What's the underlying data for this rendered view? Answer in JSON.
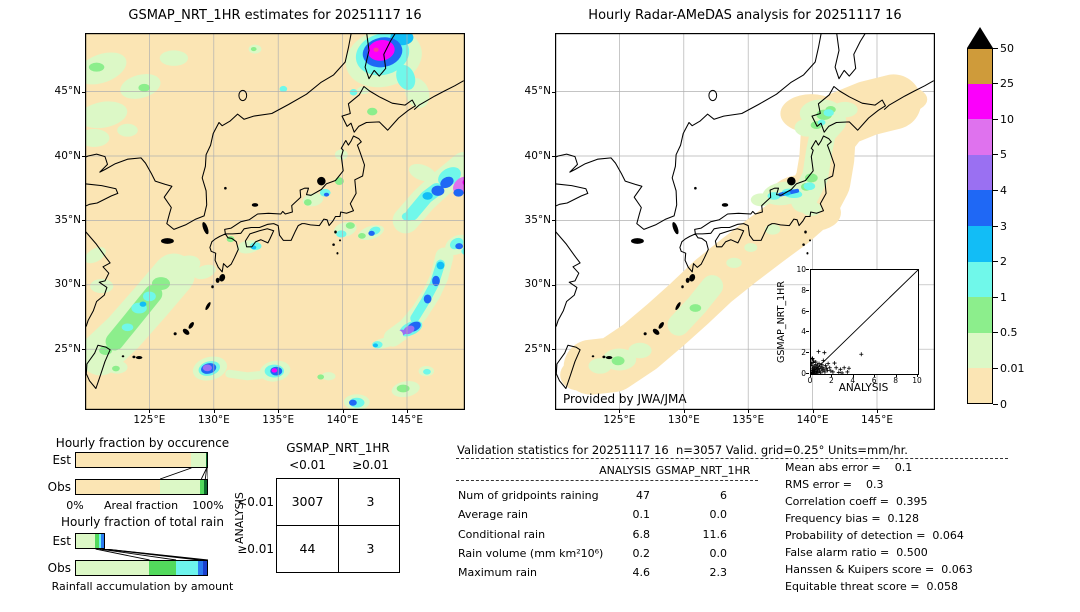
{
  "palette": {
    "wheat": "#fbe5b4",
    "palegreen": "#dcf8c6",
    "green": "#52d95c",
    "darkgreen": "#0c6b2c",
    "cyan": "#6df4ec",
    "blue": "#2b7bf0",
    "navy": "#1b41cf",
    "sea_right": "#ffffff",
    "coast": "#000000",
    "grid": "#b0b0b0"
  },
  "axes": {
    "lat": [
      {
        "v": 45,
        "label": "45°N"
      },
      {
        "v": 40,
        "label": "40°N"
      },
      {
        "v": 35,
        "label": "35°N"
      },
      {
        "v": 30,
        "label": "30°N"
      },
      {
        "v": 25,
        "label": "25°N"
      }
    ],
    "lon": [
      {
        "v": 125,
        "label": "125°E"
      },
      {
        "v": 130,
        "label": "130°E"
      },
      {
        "v": 135,
        "label": "135°E"
      },
      {
        "v": 140,
        "label": "140°E"
      },
      {
        "v": 145,
        "label": "145°E"
      }
    ]
  },
  "colorbar": {
    "tick_labels": [
      "50",
      "25",
      "10",
      "5",
      "4",
      "3",
      "2",
      "1",
      "0.5",
      "0.01",
      "0"
    ],
    "segment_colors_top_to_bottom": [
      "#cf9b3a",
      "#fb00fb",
      "#df72ee",
      "#9a70f2",
      "#1f68f5",
      "#12bdf6",
      "#70f8ea",
      "#8cee8c",
      "#dcf8c6",
      "#fbe5b4"
    ],
    "overflow_marker_color": "#000000"
  },
  "chart_data": [
    {
      "id": "map_left",
      "type": "heatmap",
      "title": "GSMAP_NRT_1HR estimates for 20251117 16",
      "region": {
        "lon_range": [
          120,
          149.5
        ],
        "lat_range": [
          20.3,
          49.5
        ]
      },
      "units": "mm/hr",
      "levels": [
        0,
        0.01,
        0.5,
        1,
        2,
        3,
        4,
        5,
        10,
        25,
        50
      ]
    },
    {
      "id": "map_right",
      "type": "heatmap",
      "title": "Hourly Radar-AMeDAS analysis for 20251117 16",
      "attribution": "Provided by JWA/JMA",
      "region": {
        "lon_range": [
          120,
          149.5
        ],
        "lat_range": [
          20.3,
          49.5
        ]
      },
      "units": "mm/hr",
      "levels": [
        0,
        0.01,
        0.5,
        1,
        2,
        3,
        4,
        5,
        10,
        25,
        50
      ]
    },
    {
      "id": "occurrence",
      "type": "bar",
      "stacked": true,
      "orientation": "horizontal",
      "title": "Hourly fraction by occurence",
      "categories": [
        "Est",
        "Obs"
      ],
      "xlabel": "Areal fraction",
      "xlim_labels": [
        "0%",
        "100%"
      ],
      "series": [
        {
          "name": "0-0.01",
          "color_key": "wheat",
          "values": [
            87.5,
            64
          ]
        },
        {
          "name": "0.01-0.5",
          "color_key": "palegreen",
          "values": [
            11.5,
            31
          ]
        },
        {
          "name": "0.5-1",
          "color_key": "green",
          "values": [
            0,
            3
          ]
        },
        {
          "name": ">1",
          "color_key": "darkgreen",
          "values": [
            1,
            2
          ]
        }
      ]
    },
    {
      "id": "total_rain",
      "type": "bar",
      "stacked": true,
      "orientation": "horizontal",
      "title": "Hourly fraction of total rain",
      "categories": [
        "Est",
        "Obs"
      ],
      "xlabel": "Rainfall accumulation by amount",
      "series": [
        {
          "name": "0.01-0.5",
          "color_key": "palegreen",
          "values": [
            15.5,
            56
          ]
        },
        {
          "name": "0.5-1",
          "color_key": "green",
          "values": [
            3,
            20
          ]
        },
        {
          "name": "1-2",
          "color_key": "cyan",
          "values": [
            2,
            17
          ]
        },
        {
          "name": "2-4",
          "color_key": "blue",
          "values": [
            2,
            4
          ]
        },
        {
          "name": ">4",
          "color_key": "navy",
          "values": [
            0,
            3
          ]
        }
      ]
    },
    {
      "id": "scatter_inset",
      "type": "scatter",
      "xlabel": "ANALYSIS",
      "ylabel": "GSMAP_NRT_1HR",
      "xlim": [
        0,
        10
      ],
      "ylim": [
        0,
        10
      ],
      "ticks": [
        0,
        2,
        4,
        6,
        8,
        10
      ],
      "identity_line": true,
      "points": [
        [
          0.05,
          0.02
        ],
        [
          0.08,
          0.1
        ],
        [
          0.1,
          0.3
        ],
        [
          0.12,
          0.05
        ],
        [
          0.15,
          0.5
        ],
        [
          0.15,
          0.15
        ],
        [
          0.2,
          0.08
        ],
        [
          0.2,
          0.35
        ],
        [
          0.25,
          0.6
        ],
        [
          0.25,
          0.2
        ],
        [
          0.3,
          0.1
        ],
        [
          0.3,
          0.45
        ],
        [
          0.35,
          0.75
        ],
        [
          0.35,
          0.25
        ],
        [
          0.4,
          0.5
        ],
        [
          0.4,
          0.05
        ],
        [
          0.45,
          0.9
        ],
        [
          0.5,
          0.3
        ],
        [
          0.5,
          0.65
        ],
        [
          0.55,
          0.1
        ],
        [
          0.6,
          0.45
        ],
        [
          0.6,
          0.85
        ],
        [
          0.65,
          0.2
        ],
        [
          0.7,
          0.55
        ],
        [
          0.75,
          1.0
        ],
        [
          0.8,
          0.3
        ],
        [
          0.85,
          0.7
        ],
        [
          0.9,
          0.1
        ],
        [
          0.95,
          0.5
        ],
        [
          1.0,
          0.9
        ],
        [
          1.05,
          0.3
        ],
        [
          1.1,
          0.65
        ],
        [
          1.15,
          1.3
        ],
        [
          1.2,
          0.45
        ],
        [
          1.3,
          0.2
        ],
        [
          1.35,
          0.8
        ],
        [
          1.45,
          0.55
        ],
        [
          1.55,
          0.35
        ],
        [
          1.6,
          1.0
        ],
        [
          1.75,
          0.6
        ],
        [
          1.85,
          0.3
        ],
        [
          0.1,
          0.8
        ],
        [
          0.2,
          1.1
        ],
        [
          0.1,
          1.45
        ],
        [
          0.05,
          1.0
        ],
        [
          0.25,
          1.25
        ],
        [
          0.45,
          1.15
        ],
        [
          0.15,
          1.5
        ],
        [
          2.05,
          0.2
        ],
        [
          2.2,
          1.05
        ],
        [
          2.35,
          0.6
        ],
        [
          2.6,
          0.15
        ],
        [
          2.75,
          0.45
        ],
        [
          2.9,
          0.1
        ],
        [
          3.1,
          0.6
        ],
        [
          3.4,
          0.2
        ],
        [
          3.55,
          0.55
        ],
        [
          4.7,
          1.9
        ],
        [
          0.7,
          2.15
        ],
        [
          1.25,
          2.05
        ]
      ]
    }
  ],
  "contingency": {
    "col_title": "GSMAP_NRT_1HR",
    "row_title": "ANALYSIS",
    "col_labels": [
      "<0.01",
      "≥0.01"
    ],
    "row_labels": [
      "<0.01",
      "≥0.01"
    ],
    "cells": [
      [
        "3007",
        "3"
      ],
      [
        "44",
        "3"
      ]
    ]
  },
  "stats": {
    "title": "Validation statistics for 20251117 16  n=3057 Valid. grid=0.25° Units=mm/hr.",
    "col_headers": [
      "ANALYSIS",
      "GSMAP_NRT_1HR"
    ],
    "rows": [
      {
        "label": "Num of gridpoints raining",
        "analysis": "47",
        "gsmap": "6"
      },
      {
        "label": "Average rain",
        "analysis": "0.1",
        "gsmap": "0.0"
      },
      {
        "label": "Conditional rain",
        "analysis": "6.8",
        "gsmap": "11.6"
      },
      {
        "label": "Rain volume (mm km²10⁶)",
        "analysis": "0.2",
        "gsmap": "0.0"
      },
      {
        "label": "Maximum rain",
        "analysis": "4.6",
        "gsmap": "2.3"
      }
    ],
    "right_lines": [
      "Mean abs error =    0.1",
      "RMS error =    0.3",
      "Correlation coeff =  0.395",
      "Frequency bias =  0.128",
      "Probability of detection =  0.064",
      "False alarm ratio =  0.500",
      "Hanssen & Kuipers score =  0.063",
      "Equitable threat score =  0.058"
    ]
  }
}
